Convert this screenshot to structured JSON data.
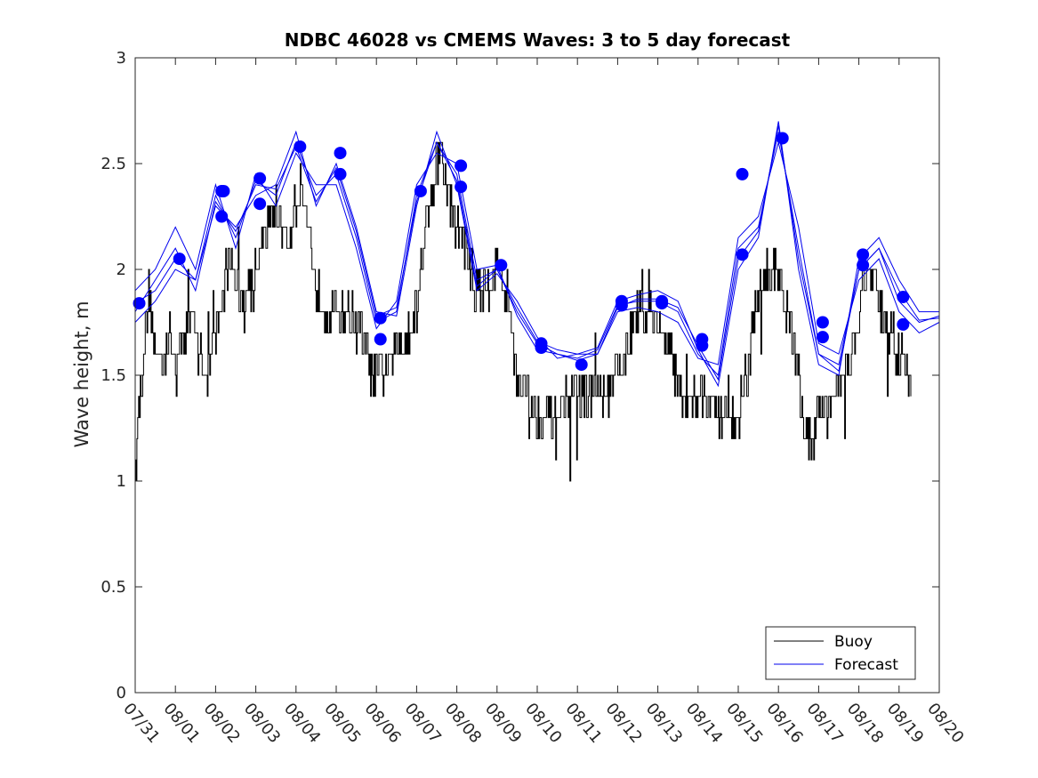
{
  "chart_data": {
    "type": "line",
    "title": "NDBC 46028 vs CMEMS Waves: 3 to 5 day forecast",
    "xlabel": "",
    "ylabel": "Wave height, m",
    "x_tick_labels": [
      "07/31",
      "08/01",
      "08/02",
      "08/03",
      "08/04",
      "08/05",
      "08/06",
      "08/07",
      "08/08",
      "08/09",
      "08/10",
      "08/11",
      "08/12",
      "08/13",
      "08/14",
      "08/15",
      "08/16",
      "08/17",
      "08/18",
      "08/19",
      "08/20"
    ],
    "x_unit": "days since 07/31 00:00",
    "xlim": [
      0,
      20
    ],
    "ylim": [
      0,
      3
    ],
    "y_ticks": [
      0,
      0.5,
      1,
      1.5,
      2,
      2.5,
      3
    ],
    "y_tick_labels": [
      "0",
      "0.5",
      "1",
      "1.5",
      "2",
      "2.5",
      "3"
    ],
    "legend": {
      "position": "bottom-right",
      "entries": [
        "Buoy",
        "Forecast"
      ]
    },
    "colors": {
      "buoy": "#000000",
      "forecast": "#0000ee",
      "marker": "#0000ff",
      "axis": "#262626"
    },
    "buoy_series": {
      "name": "Buoy",
      "anchors": [
        [
          0.0,
          1.2
        ],
        [
          0.15,
          1.5
        ],
        [
          0.35,
          1.9
        ],
        [
          0.5,
          1.6
        ],
        [
          0.7,
          1.6
        ],
        [
          0.9,
          1.7
        ],
        [
          1.0,
          1.5
        ],
        [
          1.2,
          1.7
        ],
        [
          1.4,
          1.8
        ],
        [
          1.6,
          1.6
        ],
        [
          1.8,
          1.5
        ],
        [
          2.0,
          1.7
        ],
        [
          2.2,
          1.9
        ],
        [
          2.4,
          2.1
        ],
        [
          2.6,
          1.8
        ],
        [
          2.8,
          1.9
        ],
        [
          3.0,
          2.0
        ],
        [
          3.2,
          2.2
        ],
        [
          3.5,
          2.3
        ],
        [
          3.8,
          2.1
        ],
        [
          4.1,
          2.4
        ],
        [
          4.3,
          2.2
        ],
        [
          4.5,
          1.9
        ],
        [
          4.8,
          1.8
        ],
        [
          5.0,
          1.8
        ],
        [
          5.3,
          1.8
        ],
        [
          5.6,
          1.7
        ],
        [
          5.9,
          1.5
        ],
        [
          6.2,
          1.5
        ],
        [
          6.4,
          1.6
        ],
        [
          6.7,
          1.7
        ],
        [
          7.0,
          1.8
        ],
        [
          7.2,
          2.2
        ],
        [
          7.4,
          2.4
        ],
        [
          7.6,
          2.6
        ],
        [
          7.8,
          2.3
        ],
        [
          8.0,
          2.2
        ],
        [
          8.2,
          2.1
        ],
        [
          8.5,
          1.9
        ],
        [
          8.7,
          1.9
        ],
        [
          8.9,
          2.0
        ],
        [
          9.1,
          2.0
        ],
        [
          9.3,
          1.8
        ],
        [
          9.5,
          1.5
        ],
        [
          9.8,
          1.4
        ],
        [
          10.0,
          1.3
        ],
        [
          10.3,
          1.3
        ],
        [
          10.6,
          1.35
        ],
        [
          10.9,
          1.4
        ],
        [
          11.2,
          1.4
        ],
        [
          11.5,
          1.4
        ],
        [
          11.8,
          1.4
        ],
        [
          12.0,
          1.5
        ],
        [
          12.3,
          1.7
        ],
        [
          12.6,
          1.8
        ],
        [
          12.9,
          1.8
        ],
        [
          13.1,
          1.7
        ],
        [
          13.3,
          1.6
        ],
        [
          13.6,
          1.4
        ],
        [
          13.9,
          1.4
        ],
        [
          14.2,
          1.4
        ],
        [
          14.5,
          1.3
        ],
        [
          14.8,
          1.3
        ],
        [
          15.0,
          1.3
        ],
        [
          15.2,
          1.5
        ],
        [
          15.4,
          1.8
        ],
        [
          15.6,
          1.9
        ],
        [
          15.8,
          2.0
        ],
        [
          16.0,
          2.0
        ],
        [
          16.2,
          1.8
        ],
        [
          16.4,
          1.6
        ],
        [
          16.6,
          1.3
        ],
        [
          16.8,
          1.2
        ],
        [
          17.0,
          1.3
        ],
        [
          17.2,
          1.35
        ],
        [
          17.5,
          1.4
        ],
        [
          17.8,
          1.6
        ],
        [
          18.0,
          1.8
        ],
        [
          18.2,
          2.0
        ],
        [
          18.4,
          1.9
        ],
        [
          18.6,
          1.8
        ],
        [
          18.8,
          1.7
        ],
        [
          19.0,
          1.6
        ],
        [
          19.15,
          1.55
        ],
        [
          19.3,
          1.5
        ]
      ],
      "end_x": 19.3,
      "noise_m": 0.22
    },
    "forecast_series": [
      {
        "name": "Forecast",
        "x": [
          0,
          0.5,
          1,
          1.5,
          2,
          2.5,
          3,
          3.5,
          4,
          4.5,
          5,
          5.5,
          6,
          6.5,
          7,
          7.5,
          8,
          8.5,
          9,
          9.5,
          10,
          10.5,
          11,
          11.5,
          12,
          12.5,
          13,
          13.5,
          14,
          14.5,
          15,
          15.5,
          16,
          16.5,
          17,
          17.5,
          18,
          18.5,
          19,
          19.5,
          20
        ],
        "values": [
          1.84,
          1.9,
          2.05,
          1.95,
          2.35,
          2.15,
          2.42,
          2.35,
          2.6,
          2.35,
          2.45,
          2.15,
          1.75,
          1.8,
          2.35,
          2.6,
          2.45,
          1.95,
          2.0,
          1.8,
          1.65,
          1.6,
          1.58,
          1.62,
          1.83,
          1.85,
          1.85,
          1.8,
          1.6,
          1.5,
          2.1,
          2.2,
          2.65,
          2.1,
          1.6,
          1.55,
          2.0,
          2.1,
          1.85,
          1.75,
          1.78
        ]
      },
      {
        "name": "Forecast",
        "x": [
          0,
          0.5,
          1,
          1.5,
          2,
          2.5,
          3,
          3.5,
          4,
          4.5,
          5,
          5.5,
          6,
          6.5,
          7,
          7.5,
          8,
          8.5,
          9,
          9.5,
          10,
          10.5,
          11,
          11.5,
          12,
          12.5,
          13,
          13.5,
          14,
          14.5,
          15,
          15.5,
          16,
          16.5,
          17,
          17.5,
          18,
          18.5,
          19,
          19.5,
          20
        ],
        "values": [
          1.75,
          1.85,
          2.0,
          1.95,
          2.3,
          2.2,
          2.35,
          2.4,
          2.65,
          2.3,
          2.5,
          2.2,
          1.8,
          1.78,
          2.3,
          2.65,
          2.4,
          1.9,
          1.98,
          1.85,
          1.68,
          1.58,
          1.6,
          1.63,
          1.85,
          1.88,
          1.9,
          1.85,
          1.62,
          1.45,
          2.0,
          2.15,
          2.7,
          2.0,
          1.55,
          1.5,
          2.05,
          2.15,
          1.95,
          1.8,
          1.8
        ]
      },
      {
        "name": "Forecast",
        "x": [
          0,
          0.5,
          1,
          1.5,
          2,
          2.5,
          3,
          3.5,
          4,
          4.5,
          5,
          5.5,
          6,
          6.5,
          7,
          7.5,
          8,
          8.5,
          9,
          9.5,
          10,
          10.5,
          11,
          11.5,
          12,
          12.5,
          13,
          13.5,
          14,
          14.5,
          15,
          15.5,
          16,
          16.5,
          17,
          17.5,
          18,
          18.5,
          19,
          19.5,
          20
        ],
        "values": [
          1.9,
          2.0,
          2.2,
          2.0,
          2.4,
          2.1,
          2.45,
          2.3,
          2.55,
          2.4,
          2.4,
          2.1,
          1.72,
          1.85,
          2.4,
          2.55,
          2.5,
          2.0,
          2.02,
          1.78,
          1.62,
          1.6,
          1.57,
          1.6,
          1.8,
          1.82,
          1.8,
          1.75,
          1.58,
          1.55,
          2.15,
          2.25,
          2.6,
          2.2,
          1.65,
          1.6,
          1.95,
          2.05,
          1.8,
          1.7,
          1.75
        ]
      },
      {
        "name": "Forecast",
        "x": [
          0,
          0.5,
          1,
          1.5,
          2,
          2.5,
          3,
          3.5,
          4,
          4.5,
          5,
          5.5,
          6,
          6.5,
          7,
          7.5,
          8,
          8.5,
          9,
          9.5,
          10,
          10.5,
          11,
          11.5,
          12,
          12.5,
          13,
          13.5,
          14,
          14.5,
          15,
          15.5,
          16,
          16.5,
          17,
          17.5,
          18,
          18.5,
          19,
          19.5,
          20
        ],
        "values": [
          1.8,
          1.95,
          2.1,
          1.9,
          2.32,
          2.18,
          2.4,
          2.38,
          2.58,
          2.32,
          2.48,
          2.18,
          1.78,
          1.82,
          2.32,
          2.6,
          2.42,
          1.92,
          2.0,
          1.82,
          1.66,
          1.62,
          1.6,
          1.6,
          1.82,
          1.86,
          1.86,
          1.82,
          1.64,
          1.48,
          2.05,
          2.18,
          2.68,
          2.05,
          1.6,
          1.52,
          2.0,
          2.1,
          1.9,
          1.76,
          1.77
        ]
      }
    ],
    "forecast_markers": {
      "x": [
        0.1,
        1.1,
        2.15,
        2.2,
        2.15,
        3.1,
        3.1,
        4.1,
        5.1,
        5.1,
        6.1,
        6.1,
        7.1,
        8.1,
        8.1,
        9.1,
        10.1,
        10.1,
        11.1,
        12.1,
        12.1,
        13.1,
        13.1,
        14.1,
        14.1,
        15.1,
        15.1,
        16.1,
        17.1,
        17.1,
        18.1,
        18.1,
        19.1,
        19.1
      ],
      "y": [
        1.84,
        2.05,
        2.37,
        2.37,
        2.25,
        2.43,
        2.31,
        2.58,
        2.55,
        2.45,
        1.77,
        1.67,
        2.37,
        2.49,
        2.39,
        2.02,
        1.65,
        1.63,
        1.55,
        1.85,
        1.83,
        1.85,
        1.84,
        1.67,
        1.64,
        2.45,
        2.07,
        2.62,
        1.75,
        1.68,
        2.07,
        2.02,
        1.87,
        1.74
      ]
    }
  }
}
